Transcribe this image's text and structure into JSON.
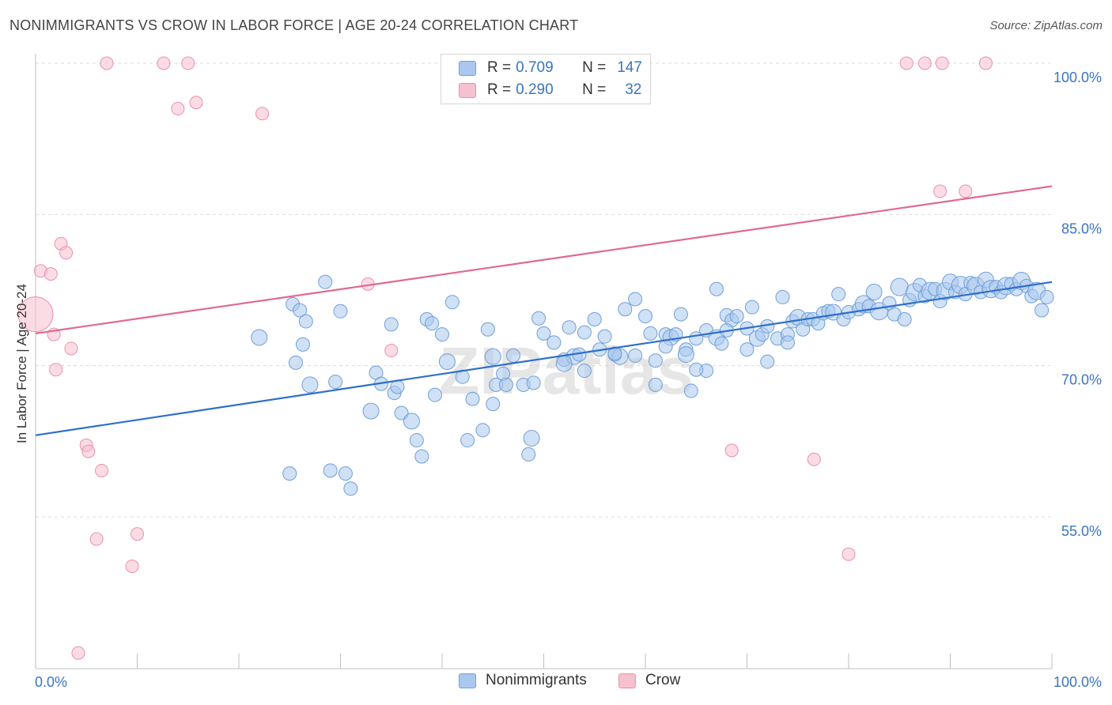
{
  "header": {
    "title": "NONIMMIGRANTS VS CROW IN LABOR FORCE | AGE 20-24 CORRELATION CHART",
    "source": "Source: ZipAtlas.com"
  },
  "legend": {
    "rows": [
      {
        "r_label": "R =",
        "r_value": "0.709",
        "n_label": "N =",
        "n_value": "147"
      },
      {
        "r_label": "R =",
        "r_value": "0.290",
        "n_label": "N =",
        "n_value": "32"
      }
    ]
  },
  "colors": {
    "blue_fill": "#aac8ef",
    "blue_stroke": "#6f9fd8",
    "blue_line": "#2f6fc9",
    "pink_fill": "#f7c0cf",
    "pink_stroke": "#e891ab",
    "pink_line": "#e06992",
    "axis_text": "#3a74c4",
    "grid": "#dcdcdc"
  },
  "chart_data": {
    "type": "scatter",
    "title": "NONIMMIGRANTS VS CROW IN LABOR FORCE | AGE 20-24 CORRELATION CHART",
    "xlabel": "",
    "ylabel": "In Labor Force | Age 20-24",
    "xlim": [
      0,
      100
    ],
    "ylim": [
      40,
      100
    ],
    "x_tick_labels": [
      "0.0%",
      "100.0%"
    ],
    "y_ticks": [
      55,
      70,
      85,
      100
    ],
    "y_tick_labels": [
      "55.0%",
      "70.0%",
      "85.0%",
      "100.0%"
    ],
    "grid": true,
    "watermark": "ZIPatlas",
    "series": [
      {
        "name": "Nonimmigrants",
        "trend": [
          [
            0,
            63.1
          ],
          [
            100,
            78.3
          ]
        ],
        "points": [
          [
            22,
            72.8
          ],
          [
            25,
            59.3
          ],
          [
            25.3,
            76.1
          ],
          [
            25.6,
            70.3
          ],
          [
            26,
            75.5
          ],
          [
            26.3,
            72.1
          ],
          [
            26.6,
            74.4
          ],
          [
            27,
            68.1
          ],
          [
            28.5,
            78.3
          ],
          [
            29,
            59.6
          ],
          [
            29.5,
            68.4
          ],
          [
            30,
            75.4
          ],
          [
            30.5,
            59.3
          ],
          [
            31,
            57.8
          ],
          [
            33,
            65.5
          ],
          [
            33.5,
            69.3
          ],
          [
            34,
            68.2
          ],
          [
            35,
            74.1
          ],
          [
            35.3,
            67.3
          ],
          [
            35.6,
            67.9
          ],
          [
            36,
            65.3
          ],
          [
            37,
            64.5
          ],
          [
            37.5,
            62.6
          ],
          [
            38,
            61
          ],
          [
            38.5,
            74.6
          ],
          [
            39,
            74.2
          ],
          [
            39.3,
            67.1
          ],
          [
            40,
            73.1
          ],
          [
            40.5,
            70.4
          ],
          [
            41,
            76.3
          ],
          [
            42,
            68.9
          ],
          [
            42.5,
            62.6
          ],
          [
            43,
            66.7
          ],
          [
            44,
            63.6
          ],
          [
            44.5,
            73.6
          ],
          [
            45,
            70.9
          ],
          [
            45.3,
            68.1
          ],
          [
            46,
            69.2
          ],
          [
            46.3,
            68.1
          ],
          [
            47,
            71
          ],
          [
            48,
            68.1
          ],
          [
            48.5,
            61.2
          ],
          [
            48.8,
            62.8
          ],
          [
            49,
            68.3
          ],
          [
            49.5,
            74.7
          ],
          [
            50,
            73.2
          ],
          [
            51,
            72.3
          ],
          [
            52,
            70.6
          ],
          [
            52.5,
            73.8
          ],
          [
            53,
            70.9
          ],
          [
            53.5,
            71.1
          ],
          [
            54,
            69.5
          ],
          [
            55,
            74.6
          ],
          [
            55.5,
            71.6
          ],
          [
            56,
            72.9
          ],
          [
            57,
            71.1
          ],
          [
            57.5,
            70.9
          ],
          [
            58,
            75.6
          ],
          [
            59,
            71
          ],
          [
            60,
            74.9
          ],
          [
            60.5,
            73.2
          ],
          [
            61,
            68.1
          ],
          [
            62,
            73.1
          ],
          [
            62.5,
            72.8
          ],
          [
            63,
            73.1
          ],
          [
            63.5,
            75.1
          ],
          [
            64,
            71.6
          ],
          [
            64.5,
            67.5
          ],
          [
            65,
            72.7
          ],
          [
            66,
            73.5
          ],
          [
            67,
            72.8
          ],
          [
            67.5,
            72.2
          ],
          [
            68,
            75
          ],
          [
            68.5,
            74.5
          ],
          [
            69,
            74.9
          ],
          [
            70,
            73.7
          ],
          [
            70.5,
            75.8
          ],
          [
            71,
            72.7
          ],
          [
            71.5,
            73.1
          ],
          [
            72,
            73.9
          ],
          [
            73,
            72.7
          ],
          [
            73.5,
            76.8
          ],
          [
            74,
            73.1
          ],
          [
            74.5,
            74.4
          ],
          [
            75,
            74.8
          ],
          [
            75.5,
            73.6
          ],
          [
            76,
            74.6
          ],
          [
            76.5,
            74.6
          ],
          [
            77,
            74.2
          ],
          [
            77.5,
            75.2
          ],
          [
            78,
            75.4
          ],
          [
            78.5,
            75.3
          ],
          [
            79,
            77.1
          ],
          [
            79.5,
            74.6
          ],
          [
            80,
            75.3
          ],
          [
            81,
            75.6
          ],
          [
            81.5,
            76.1
          ],
          [
            82,
            75.9
          ],
          [
            82.5,
            77.3
          ],
          [
            83,
            75.4
          ],
          [
            84,
            76.2
          ],
          [
            84.5,
            75.1
          ],
          [
            85,
            77.8
          ],
          [
            85.5,
            74.6
          ],
          [
            86,
            76.5
          ],
          [
            86.5,
            77.3
          ],
          [
            87,
            78
          ],
          [
            87.5,
            76.9
          ],
          [
            88,
            77.4
          ],
          [
            88.5,
            77.6
          ],
          [
            89,
            76.4
          ],
          [
            89.5,
            77.4
          ],
          [
            90,
            78.3
          ],
          [
            90.5,
            77.3
          ],
          [
            91,
            78
          ],
          [
            91.5,
            77.1
          ],
          [
            92,
            78.2
          ],
          [
            92.5,
            77.9
          ],
          [
            93,
            77.3
          ],
          [
            93.5,
            78.5
          ],
          [
            94,
            77.6
          ],
          [
            94.5,
            77.8
          ],
          [
            95,
            77.3
          ],
          [
            95.5,
            77.9
          ],
          [
            96,
            78.1
          ],
          [
            96.5,
            77.6
          ],
          [
            97,
            78.4
          ],
          [
            97.5,
            77.9
          ],
          [
            98,
            76.9
          ],
          [
            98.5,
            77.4
          ],
          [
            99,
            75.5
          ],
          [
            99.5,
            76.8
          ],
          [
            57,
            71.2
          ],
          [
            64,
            71.1
          ],
          [
            66,
            69.5
          ],
          [
            68,
            73.5
          ],
          [
            70,
            71.6
          ],
          [
            72,
            70.4
          ],
          [
            74,
            72.3
          ],
          [
            45,
            66.2
          ],
          [
            52,
            70.2
          ],
          [
            54,
            73.3
          ],
          [
            59,
            76.6
          ],
          [
            61,
            70.5
          ],
          [
            62,
            71.9
          ],
          [
            65,
            69.6
          ],
          [
            67,
            77.6
          ]
        ]
      },
      {
        "name": "Crow",
        "trend": [
          [
            0,
            73.2
          ],
          [
            100,
            87.8
          ]
        ],
        "points": [
          [
            0,
            75.1
          ],
          [
            0.5,
            79.4
          ],
          [
            1.5,
            79.1
          ],
          [
            1.8,
            73.1
          ],
          [
            2,
            69.6
          ],
          [
            2.5,
            82.1
          ],
          [
            3,
            81.2
          ],
          [
            3.5,
            71.7
          ],
          [
            4.2,
            41.5
          ],
          [
            5,
            62.1
          ],
          [
            5.2,
            61.5
          ],
          [
            6,
            52.8
          ],
          [
            6.5,
            59.6
          ],
          [
            7,
            100
          ],
          [
            9.5,
            50.1
          ],
          [
            10,
            53.3
          ],
          [
            12.6,
            100
          ],
          [
            14,
            95.5
          ],
          [
            15,
            100
          ],
          [
            15.8,
            96.1
          ],
          [
            22.3,
            95
          ],
          [
            32.7,
            78.1
          ],
          [
            35,
            71.5
          ],
          [
            68.5,
            61.6
          ],
          [
            76.6,
            60.7
          ],
          [
            80,
            51.3
          ],
          [
            85.7,
            100
          ],
          [
            87.5,
            100
          ],
          [
            89,
            87.3
          ],
          [
            89.2,
            100
          ],
          [
            91.5,
            87.3
          ],
          [
            93.5,
            100
          ]
        ]
      }
    ]
  },
  "bottom_legend": [
    {
      "label": "Nonimmigrants"
    },
    {
      "label": "Crow"
    }
  ]
}
